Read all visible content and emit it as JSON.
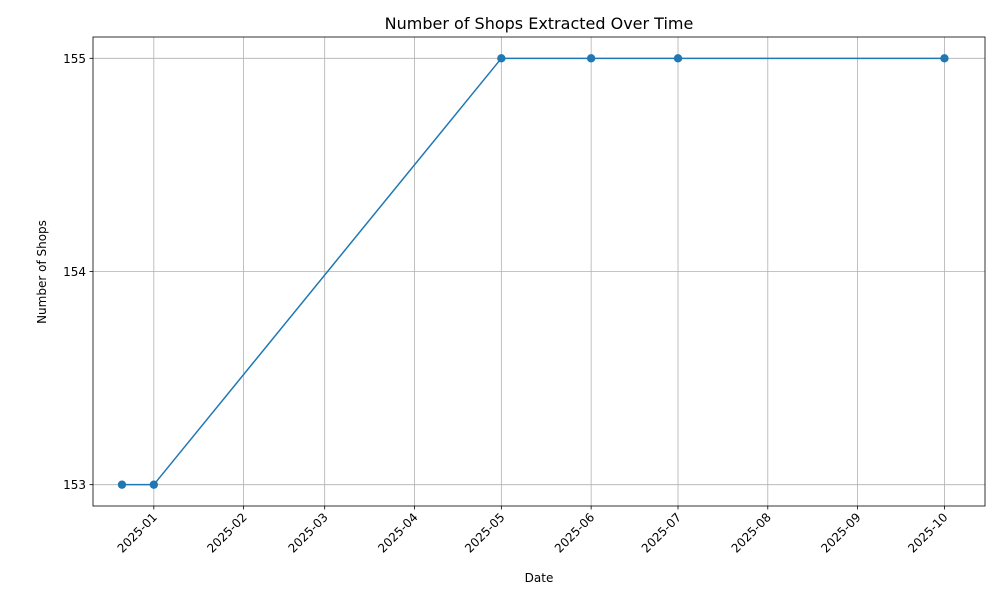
{
  "chart_data": {
    "type": "line",
    "title": "Number of Shops Extracted Over Time",
    "xlabel": "Date",
    "ylabel": "Number of Shops",
    "x_tick_labels": [
      "2025-01",
      "2025-02",
      "2025-03",
      "2025-04",
      "2025-05",
      "2025-06",
      "2025-07",
      "2025-08",
      "2025-09",
      "2025-10"
    ],
    "y_tick_labels": [
      "153",
      "154",
      "155"
    ],
    "x_ticks": [
      "2025-01-01",
      "2025-02-01",
      "2025-03-01",
      "2025-04-01",
      "2025-05-01",
      "2025-06-01",
      "2025-07-01",
      "2025-08-01",
      "2025-09-01",
      "2025-10-01"
    ],
    "y_ticks": [
      153,
      154,
      155
    ],
    "xlim": [
      "2024-12-11",
      "2025-10-15"
    ],
    "ylim": [
      152.9,
      155.1
    ],
    "grid": true,
    "series": [
      {
        "color": "#1f77b4",
        "marker": "circle",
        "points": [
          {
            "x": "2024-12-21",
            "y": 153
          },
          {
            "x": "2025-01-01",
            "y": 153
          },
          {
            "x": "2025-05-01",
            "y": 155
          },
          {
            "x": "2025-06-01",
            "y": 155
          },
          {
            "x": "2025-07-01",
            "y": 155
          },
          {
            "x": "2025-10-01",
            "y": 155
          }
        ]
      }
    ]
  }
}
